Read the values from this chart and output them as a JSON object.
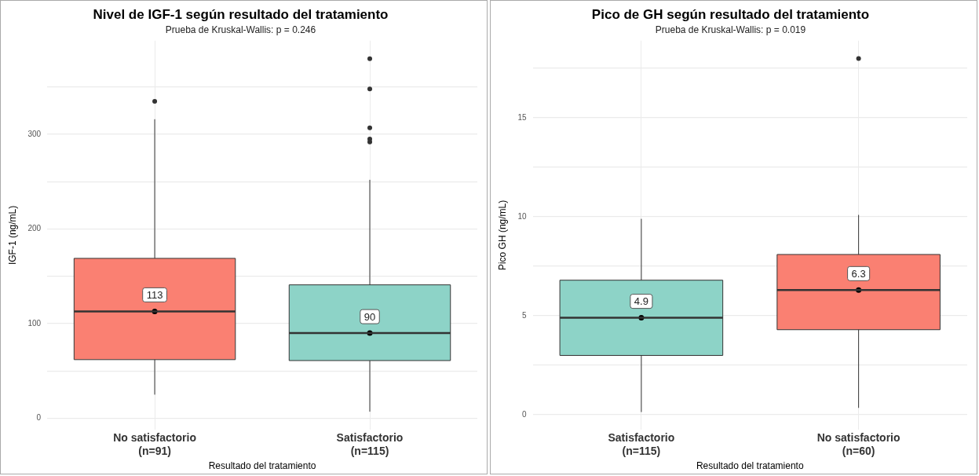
{
  "chart_data": [
    {
      "type": "box",
      "title": "Nivel de IGF-1 según resultado del tratamiento",
      "subtitle": "Prueba de Kruskal-Wallis: p = 0.246",
      "xlabel": "Resultado del tratamiento",
      "ylabel": "IGF-1 (ng/mL)",
      "categories": [
        "No satisfactorio\n(n=91)",
        "Satisfactorio\n(n=115)"
      ],
      "colors": [
        "#fa8072",
        "#8dd3c7"
      ],
      "boxes": [
        {
          "low": 25,
          "q1": 62,
          "median": 113,
          "q3": 169,
          "high": 316,
          "outliers": [
            335
          ]
        },
        {
          "low": 7,
          "q1": 61,
          "median": 90,
          "q3": 141,
          "high": 252,
          "outliers": [
            380,
            348,
            307,
            295,
            292
          ]
        }
      ],
      "series": [
        {
          "type": "scatter",
          "x": [
            "No satisfactorio\n(n=91)",
            "Satisfactorio\n(n=115)"
          ],
          "values": [
            113,
            90
          ],
          "value_labels": [
            "113",
            "90"
          ],
          "color": "#000000"
        }
      ],
      "ylim": [
        -12,
        399
      ],
      "yticks": [
        0,
        {
          "value": 50,
          "label": null
        },
        100,
        {
          "value": 150,
          "label": null
        },
        200,
        {
          "value": 250,
          "label": null
        },
        300,
        {
          "value": 350,
          "label": null
        }
      ],
      "grid": true
    },
    {
      "type": "box",
      "title": "Pico de GH según resultado del tratamiento",
      "subtitle": "Prueba de Kruskal-Wallis: p = 0.019",
      "xlabel": "Resultado del tratamiento",
      "ylabel": "Pico GH (ng/mL)",
      "categories": [
        "Satisfactorio\n(n=115)",
        "No satisfactorio\n(n=60)"
      ],
      "colors": [
        "#8dd3c7",
        "#fa8072"
      ],
      "boxes": [
        {
          "low": 0.14,
          "q1": 3.0,
          "median": 4.9,
          "q3": 6.8,
          "high": 9.9
        },
        {
          "low": 0.35,
          "q1": 4.3,
          "median": 6.3,
          "q3": 8.1,
          "high": 10.1,
          "outliers": [
            18
          ]
        }
      ],
      "series": [
        {
          "type": "scatter",
          "x": [
            "Satisfactorio\n(n=115)",
            "No satisfactorio\n(n=60)"
          ],
          "values": [
            4.9,
            6.3
          ],
          "value_labels": [
            "4.9",
            "6.3"
          ],
          "color": "#000000"
        }
      ],
      "ylim": [
        -0.75,
        18.9
      ],
      "yticks": [
        0,
        {
          "value": 2.5,
          "label": null
        },
        5,
        {
          "value": 7.5,
          "label": null
        },
        10,
        {
          "value": 12.5,
          "label": null
        },
        15,
        {
          "value": 17.5,
          "label": null
        }
      ],
      "grid": true
    }
  ]
}
